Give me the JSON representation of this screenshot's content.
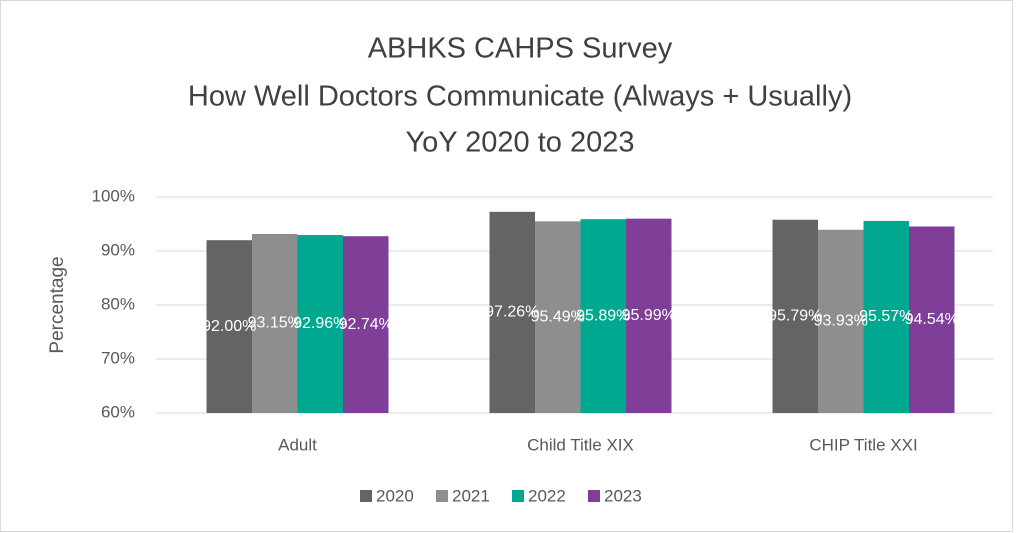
{
  "chart_data": {
    "type": "bar",
    "title": [
      "ABHKS CAHPS Survey",
      "How Well Doctors Communicate (Always + Usually)",
      "YoY 2020 to 2023"
    ],
    "y_label": "Percentage",
    "categories": [
      "Adult",
      "Child Title XIX",
      "CHIP Title XXI"
    ],
    "series": [
      {
        "name": "2020",
        "color": "#646464",
        "values": [
          92.0,
          97.26,
          95.79
        ],
        "value_labels": [
          "92.00%",
          "97.26%",
          "95.79%"
        ]
      },
      {
        "name": "2021",
        "color": "#8e8e8e",
        "values": [
          93.15,
          95.49,
          93.93
        ],
        "value_labels": [
          "93.15%",
          "95.49%",
          "93.93%"
        ]
      },
      {
        "name": "2022",
        "color": "#00a88f",
        "values": [
          92.96,
          95.89,
          95.57
        ],
        "value_labels": [
          "92.96%",
          "95.89%",
          "95.57%"
        ]
      },
      {
        "name": "2023",
        "color": "#7f3f98",
        "values": [
          92.74,
          95.99,
          94.54
        ],
        "value_labels": [
          "92.74%",
          "95.99%",
          "94.54%"
        ]
      }
    ],
    "ylim": [
      60,
      100
    ],
    "yticks": [
      {
        "value": 60,
        "label": "60%"
      },
      {
        "value": 70,
        "label": "70%"
      },
      {
        "value": 80,
        "label": "80%"
      },
      {
        "value": 90,
        "label": "90%"
      },
      {
        "value": 100,
        "label": "100%"
      }
    ],
    "grid": true,
    "legend": "bottom"
  }
}
